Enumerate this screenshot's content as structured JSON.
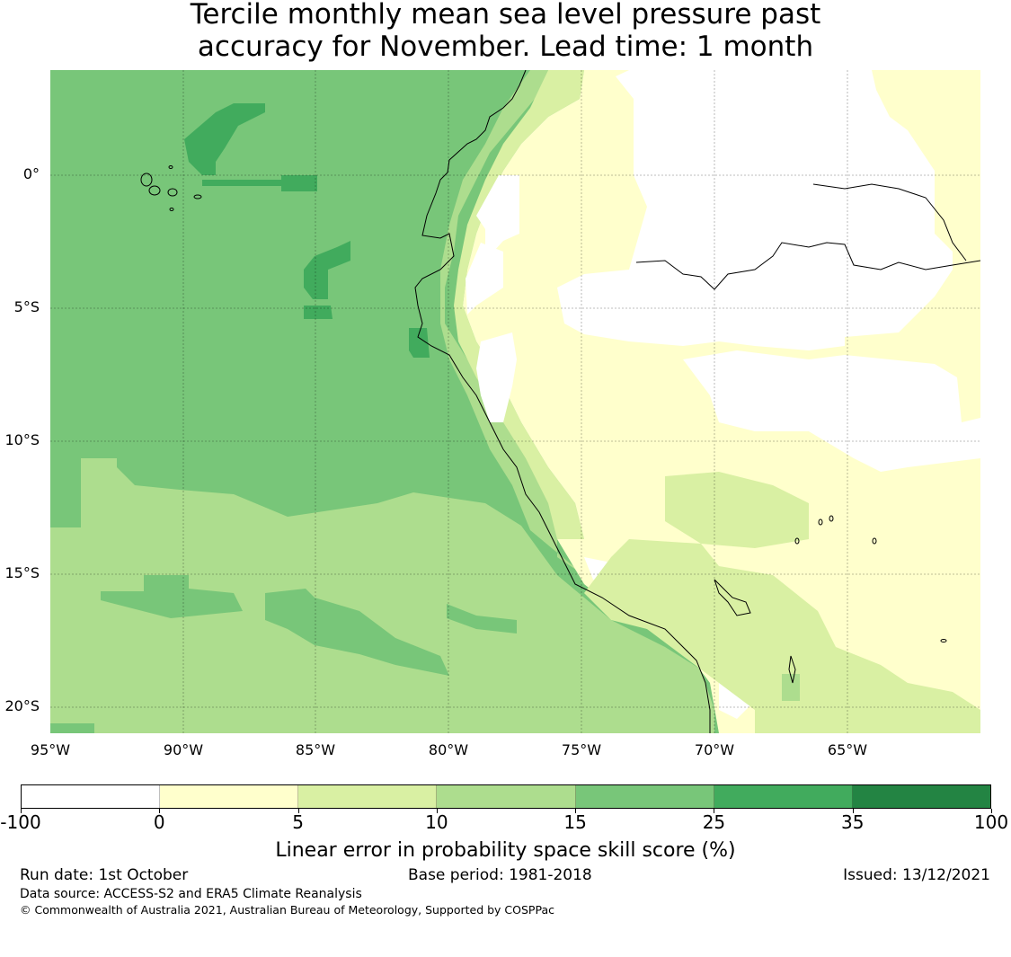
{
  "title": {
    "line1": "Tercile monthly mean sea level pressure past",
    "line2": "accuracy for November. Lead time: 1 month"
  },
  "map": {
    "lat_labels": [
      "0°",
      "5°S",
      "10°S",
      "15°S",
      "20°S"
    ],
    "lon_labels": [
      "95°W",
      "90°W",
      "85°W",
      "80°W",
      "75°W",
      "70°W",
      "65°W"
    ]
  },
  "colorbar": {
    "ticks": [
      "-100",
      "0",
      "5",
      "10",
      "15",
      "25",
      "35",
      "100"
    ],
    "colors": [
      "#ffffff",
      "#ffffcc",
      "#d9f0a3",
      "#addd8e",
      "#78c679",
      "#41ab5d",
      "#238443"
    ],
    "label": "Linear error in probability space skill score (%)"
  },
  "footer": {
    "run_date": "Run date: 1st October",
    "base_period": "Base period: 1981-2018",
    "issued": "Issued: 13/12/2021",
    "data_source": "Data source: ACCESS-S2 and ERA5 Climate Reanalysis",
    "copyright": "© Commonwealth of Australia 2021, Australian Bureau of Meteorology, Supported by COSPPac"
  }
}
